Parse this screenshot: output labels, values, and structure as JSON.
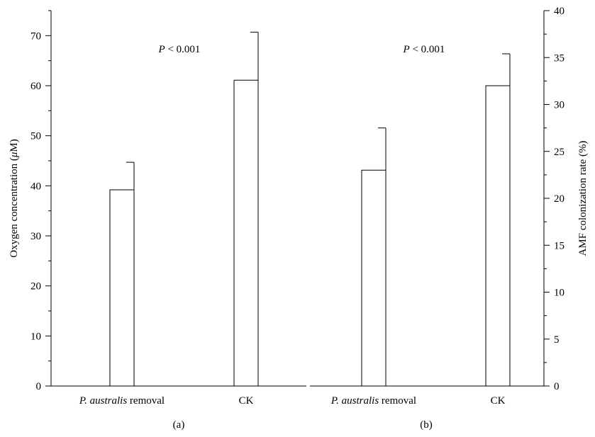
{
  "chart_data": [
    {
      "type": "bar",
      "panel_label": "(a)",
      "categories": [
        {
          "italic": "P. australis",
          "rest": " removal"
        },
        {
          "italic": "",
          "rest": "CK"
        }
      ],
      "values": [
        39.2,
        61.1
      ],
      "errors": [
        5.5,
        9.6
      ],
      "ylabel": {
        "pre": "Oxygen concentration (",
        "italic": "μ",
        "post": "M)"
      },
      "ylim": [
        0,
        75
      ],
      "yticks": [
        0,
        10,
        20,
        30,
        40,
        50,
        60,
        70
      ],
      "annotation": {
        "italic": "P",
        "rest": " < 0.001"
      },
      "axis_side": "left",
      "bar_color": "#ffffff",
      "grid": false
    },
    {
      "type": "bar",
      "panel_label": "(b)",
      "categories": [
        {
          "italic": "P. australis",
          "rest": " removal"
        },
        {
          "italic": "",
          "rest": "CK"
        }
      ],
      "values": [
        23.0,
        32.0
      ],
      "errors": [
        4.5,
        3.4
      ],
      "ylabel": {
        "pre": "AMF colonization rate (%)",
        "italic": "",
        "post": ""
      },
      "ylim": [
        0,
        40
      ],
      "yticks": [
        0,
        5,
        10,
        15,
        20,
        25,
        30,
        35,
        40
      ],
      "annotation": {
        "italic": "P",
        "rest": " < 0.001"
      },
      "axis_side": "right",
      "bar_color": "#ffffff",
      "grid": false
    }
  ]
}
